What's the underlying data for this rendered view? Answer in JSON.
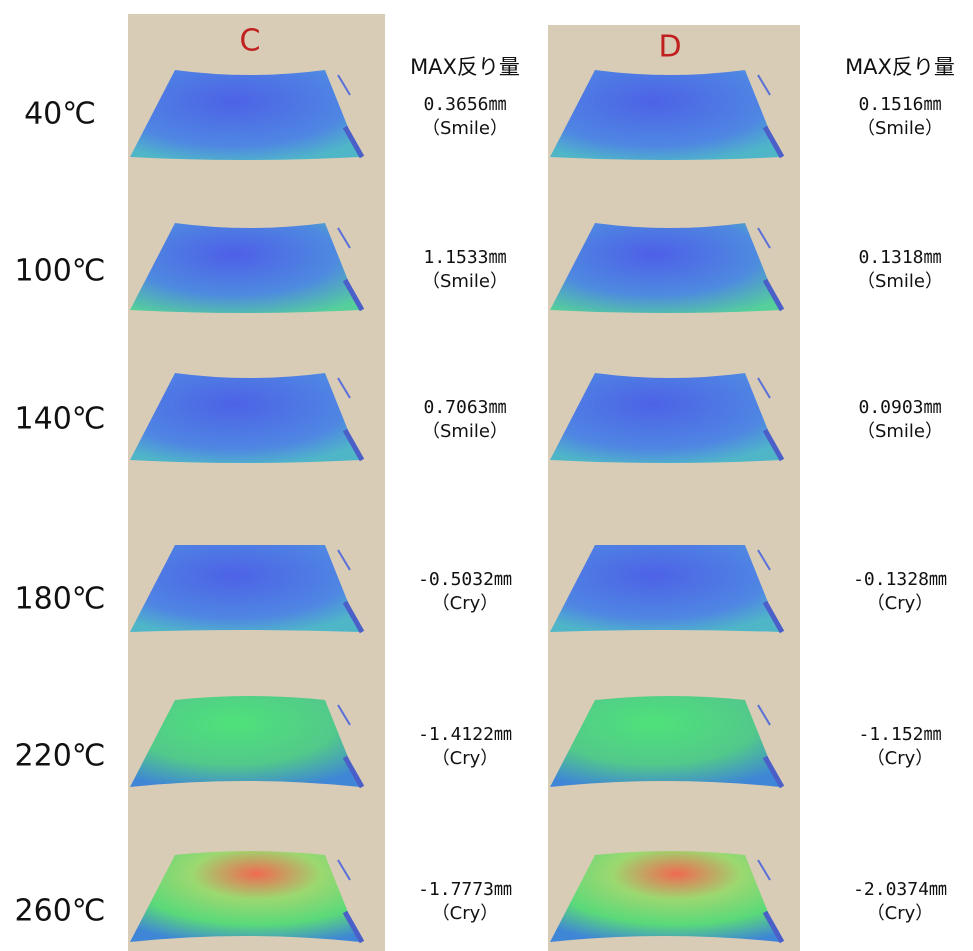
{
  "temperatures": [
    "40℃",
    "100℃",
    "140℃",
    "180℃",
    "220℃",
    "260℃"
  ],
  "panels": [
    {
      "label": "C",
      "header": "MAX反り量",
      "results": [
        {
          "value": "0.3656㎜",
          "shape": "（Smile）"
        },
        {
          "value": "1.1533㎜",
          "shape": "（Smile）"
        },
        {
          "value": "0.7063㎜",
          "shape": "（Smile）"
        },
        {
          "value": "-0.5032㎜",
          "shape": "（Cry）"
        },
        {
          "value": "-1.4122㎜",
          "shape": "（Cry）"
        },
        {
          "value": "-1.7773㎜",
          "shape": "（Cry）"
        }
      ]
    },
    {
      "label": "D",
      "header": "MAX反り量",
      "results": [
        {
          "value": "0.1516㎜",
          "shape": "（Smile）"
        },
        {
          "value": "0.1318㎜",
          "shape": "（Smile）"
        },
        {
          "value": "0.0903㎜",
          "shape": "（Smile）"
        },
        {
          "value": "-0.1328㎜",
          "shape": "（Cry）"
        },
        {
          "value": "-1.152㎜",
          "shape": "（Cry）"
        },
        {
          "value": "-2.0374㎜",
          "shape": "（Cry）"
        }
      ]
    }
  ]
}
